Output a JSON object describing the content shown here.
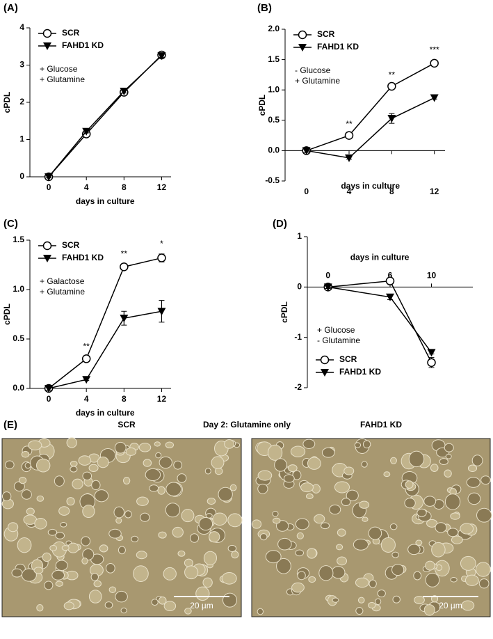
{
  "chart_data": [
    {
      "type": "line",
      "label": "(A)",
      "ylabel": "cPDL",
      "xlabel": "days in culture",
      "xlabel_side": "bottom",
      "x": [
        0,
        4,
        8,
        12
      ],
      "xlim": [
        -2,
        13
      ],
      "xticks": [
        0,
        4,
        8,
        12
      ],
      "ylim": [
        0,
        4
      ],
      "yticks": [
        0,
        1,
        2,
        3,
        4
      ],
      "legend": "upper left",
      "annotations": [
        "+ Glucose",
        "+ Glutamine"
      ],
      "series": [
        {
          "name": "SCR",
          "color": "#000000",
          "marker": "circle",
          "values": [
            0,
            1.15,
            2.27,
            3.27
          ],
          "errors": [
            0.03,
            0.04,
            0.05,
            0.04
          ]
        },
        {
          "name": "FAHD1 KD",
          "color": "#000000",
          "marker": "triangle-down",
          "values": [
            0,
            1.22,
            2.3,
            3.25
          ],
          "errors": [
            0.03,
            0.04,
            0.05,
            0.04
          ]
        }
      ]
    },
    {
      "type": "line",
      "label": "(B)",
      "ylabel": "cPDL",
      "xlabel": "days in culture",
      "xlabel_side": "bottom",
      "x": [
        0,
        4,
        8,
        12
      ],
      "xlim": [
        -2,
        13
      ],
      "xticks": [
        0,
        4,
        8,
        12
      ],
      "ylim": [
        -0.5,
        2.0
      ],
      "yticks": [
        -0.5,
        {
          "value": 0,
          "label": "0.0"
        },
        0.5,
        {
          "value": 1,
          "label": "1.0"
        },
        1.5,
        {
          "value": 2,
          "label": "2.0"
        }
      ],
      "legend": "upper left",
      "annotations": [
        "- Glucose",
        "+ Glutamine"
      ],
      "significance": [
        null,
        "**",
        "**",
        "***"
      ],
      "series": [
        {
          "name": "SCR",
          "color": "#000000",
          "marker": "circle",
          "values": [
            0,
            0.25,
            1.06,
            1.44
          ],
          "errors": [
            0.03,
            0.02,
            0.02,
            0.05
          ]
        },
        {
          "name": "FAHD1 KD",
          "color": "#000000",
          "marker": "triangle-down",
          "values": [
            0,
            -0.12,
            0.53,
            0.87
          ],
          "errors": [
            0.03,
            0.02,
            0.08,
            0.02
          ]
        }
      ]
    },
    {
      "type": "line",
      "label": "(C)",
      "ylabel": "cPDL",
      "xlabel": "days in culture",
      "xlabel_side": "bottom",
      "x": [
        0,
        4,
        8,
        12
      ],
      "xlim": [
        -2,
        13
      ],
      "xticks": [
        0,
        4,
        8,
        12
      ],
      "ylim": [
        0,
        1.5
      ],
      "yticks": [
        {
          "value": 0,
          "label": "0.0"
        },
        0.5,
        {
          "value": 1,
          "label": "1.0"
        },
        1.5
      ],
      "legend": "upper left",
      "annotations": [
        "+ Galactose",
        "+ Glutamine"
      ],
      "significance": [
        null,
        "**",
        "**",
        "*"
      ],
      "series": [
        {
          "name": "SCR",
          "color": "#000000",
          "marker": "circle",
          "values": [
            0,
            0.3,
            1.23,
            1.32
          ],
          "errors": [
            0.02,
            0.02,
            0.03,
            0.04
          ]
        },
        {
          "name": "FAHD1 KD",
          "color": "#000000",
          "marker": "triangle-down",
          "values": [
            0,
            0.09,
            0.71,
            0.78
          ],
          "errors": [
            0.02,
            0.01,
            0.07,
            0.11
          ]
        }
      ]
    },
    {
      "type": "line",
      "label": "(D)",
      "ylabel": "cPDL",
      "xlabel": "days in culture",
      "xlabel_side": "top",
      "x": [
        0,
        6,
        10
      ],
      "xlim": [
        -2,
        14
      ],
      "xticks": [
        0,
        6,
        10
      ],
      "ylim": [
        -2,
        1
      ],
      "yticks": [
        -2,
        -1,
        0,
        1
      ],
      "legend": "lower left",
      "annotations": [
        "+ Glucose",
        "- Glutamine"
      ],
      "series": [
        {
          "name": "SCR",
          "color": "#000000",
          "marker": "circle",
          "values": [
            0,
            0.12,
            -1.5
          ],
          "errors": [
            0.03,
            0.03,
            0.1
          ]
        },
        {
          "name": "FAHD1 KD",
          "color": "#000000",
          "marker": "triangle-down",
          "values": [
            0,
            -0.2,
            -1.3
          ],
          "errors": [
            0.03,
            0.05,
            0.03
          ]
        }
      ]
    }
  ],
  "panel_e": {
    "label": "(E)",
    "title": "Day 2: Glutamine only",
    "left_caption": "SCR",
    "right_caption": "FAHD1 KD",
    "left_scale": "20 µm",
    "right_scale": "20 µm"
  }
}
